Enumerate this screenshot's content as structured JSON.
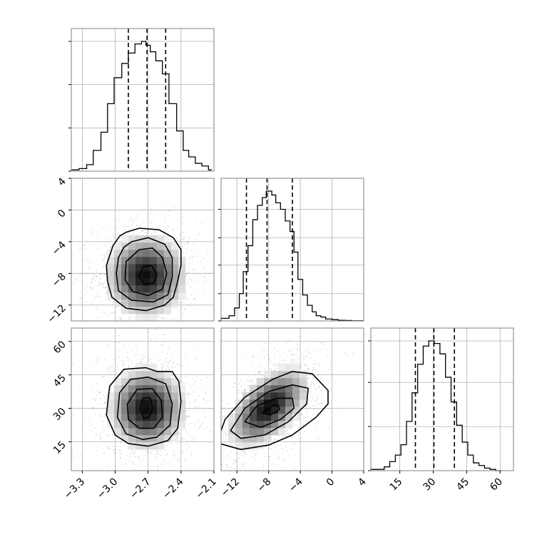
{
  "chart_data": {
    "type": "corner",
    "grid": true,
    "params": [
      {
        "range": [
          -3.4,
          -2.1
        ],
        "ticks": [
          -3.3,
          -3.0,
          -2.7,
          -2.4,
          -2.1
        ],
        "tick_labels": [
          "−3.3",
          "−3.0",
          "−2.7",
          "−2.4",
          "−2.1"
        ],
        "quantiles": [
          -2.88,
          -2.71,
          -2.54
        ],
        "hist_bins": [
          -3.4,
          -3.33,
          -3.26,
          -3.2,
          -3.13,
          -3.07,
          -3.01,
          -2.94,
          -2.88,
          -2.82,
          -2.76,
          -2.72,
          -2.68,
          -2.63,
          -2.57,
          -2.51,
          -2.44,
          -2.38,
          -2.33,
          -2.27,
          -2.21,
          -2.15,
          -2.12
        ],
        "hist_counts": [
          1,
          2,
          5,
          16,
          30,
          52,
          72,
          83,
          91,
          98,
          100,
          97,
          92,
          85,
          75,
          52,
          31,
          16,
          11,
          6,
          4,
          1
        ],
        "hist_ticks": [
          0,
          33.3,
          66.7,
          100
        ]
      },
      {
        "range": [
          -14,
          4
        ],
        "ticks": [
          -12,
          -8,
          -4,
          0,
          4
        ],
        "tick_labels": [
          "−12",
          "−8",
          "−4",
          "0",
          "4"
        ],
        "quantiles": [
          -10.8,
          -8.2,
          -5.0
        ],
        "hist_bins": [
          -14,
          -13,
          -12.3,
          -11.7,
          -11.2,
          -10.6,
          -10,
          -9.4,
          -8.8,
          -8.3,
          -7.6,
          -7.1,
          -6.5,
          -5.9,
          -5.3,
          -4.8,
          -4.3,
          -3.7,
          -3.1,
          -2.5,
          -2,
          -1.4,
          -0.8,
          0,
          0.8,
          1.7,
          2.5,
          4
        ],
        "hist_counts": [
          2,
          4,
          10,
          21,
          38,
          58,
          78,
          89,
          95,
          100,
          97,
          91,
          86,
          77,
          69,
          53,
          32,
          20,
          12,
          7,
          4,
          3,
          1.5,
          1,
          0.5,
          0.3,
          0.1
        ],
        "hist_ticks": [
          0,
          21,
          43,
          64,
          86
        ]
      },
      {
        "range": [
          2,
          66
        ],
        "ticks": [
          15,
          30,
          45,
          60
        ],
        "tick_labels": [
          "15",
          "30",
          "45",
          "60"
        ],
        "quantiles": [
          22,
          30.3,
          39.5
        ],
        "hist_bins": [
          2,
          8,
          10.5,
          13,
          15.5,
          18,
          20.5,
          23,
          25.5,
          28,
          30.5,
          33,
          35.5,
          38,
          40.5,
          43,
          45.5,
          48,
          50.5,
          53,
          55.5,
          58,
          60.5
        ],
        "hist_counts": [
          1,
          3,
          7,
          12,
          20,
          38,
          60,
          82,
          96,
          100,
          98,
          90,
          72,
          53,
          35,
          22,
          12,
          6,
          4,
          2,
          1,
          0
        ],
        "hist_ticks": [
          0,
          34,
          68,
          100
        ]
      }
    ],
    "pairs": [
      {
        "x_param": 0,
        "y_param": 1,
        "y_ticks": [
          -12,
          -8,
          -4,
          0,
          4
        ],
        "y_tick_labels": [
          "−12",
          "−8",
          "−4",
          "0",
          "4"
        ],
        "center": [
          -2.72,
          -8.3
        ],
        "sigma": [
          0.19,
          2.7
        ],
        "corr": 0.0,
        "n_points": 1500,
        "contours": [
          [
            [
              -2.9,
              -2.8
            ],
            [
              -2.78,
              -2.3
            ],
            [
              -2.6,
              -2.5
            ],
            [
              -2.47,
              -3.5
            ],
            [
              -2.4,
              -5.0
            ],
            [
              -2.4,
              -7.0
            ],
            [
              -2.43,
              -9.0
            ],
            [
              -2.47,
              -11.0
            ],
            [
              -2.55,
              -12.0
            ],
            [
              -2.72,
              -12.7
            ],
            [
              -2.9,
              -12.4
            ],
            [
              -3.03,
              -11.0
            ],
            [
              -3.07,
              -9.0
            ],
            [
              -3.08,
              -7.0
            ],
            [
              -3.02,
              -4.5
            ],
            [
              -2.96,
              -3.3
            ]
          ],
          [
            [
              -2.85,
              -4.0
            ],
            [
              -2.7,
              -3.5
            ],
            [
              -2.55,
              -4.3
            ],
            [
              -2.48,
              -6.0
            ],
            [
              -2.48,
              -8.5
            ],
            [
              -2.52,
              -10.7
            ],
            [
              -2.65,
              -11.6
            ],
            [
              -2.85,
              -11.4
            ],
            [
              -2.97,
              -10.2
            ],
            [
              -2.99,
              -8.0
            ],
            [
              -2.97,
              -6.0
            ],
            [
              -2.92,
              -4.7
            ]
          ],
          [
            [
              -2.78,
              -5.0
            ],
            [
              -2.66,
              -4.8
            ],
            [
              -2.57,
              -6.0
            ],
            [
              -2.53,
              -8.0
            ],
            [
              -2.57,
              -10.0
            ],
            [
              -2.7,
              -10.8
            ],
            [
              -2.84,
              -10.3
            ],
            [
              -2.91,
              -8.8
            ],
            [
              -2.9,
              -6.5
            ]
          ],
          [
            [
              -2.75,
              -7.2
            ],
            [
              -2.67,
              -7.0
            ],
            [
              -2.62,
              -8.1
            ],
            [
              -2.65,
              -9.2
            ],
            [
              -2.73,
              -9.4
            ],
            [
              -2.78,
              -8.5
            ]
          ]
        ]
      },
      {
        "x_param": 0,
        "y_param": 2,
        "y_ticks": [
          15,
          30,
          45,
          60
        ],
        "y_tick_labels": [
          "15",
          "30",
          "45",
          "60"
        ],
        "center": [
          -2.71,
          30
        ],
        "sigma": [
          0.18,
          9.5
        ],
        "corr": 0.0,
        "n_points": 1500,
        "contours": [
          [
            [
              -2.92,
              47.5
            ],
            [
              -2.72,
              48.2
            ],
            [
              -2.62,
              46.5
            ],
            [
              -2.48,
              46.5
            ],
            [
              -2.42,
              42.0
            ],
            [
              -2.4,
              33.0
            ],
            [
              -2.43,
              21.0
            ],
            [
              -2.52,
              15.5
            ],
            [
              -2.7,
              13.0
            ],
            [
              -2.88,
              14.2
            ],
            [
              -3.0,
              18.0
            ],
            [
              -3.08,
              27.0
            ],
            [
              -3.05,
              40.0
            ]
          ],
          [
            [
              -2.86,
              43.0
            ],
            [
              -2.7,
              44.0
            ],
            [
              -2.54,
              41.0
            ],
            [
              -2.48,
              32.0
            ],
            [
              -2.5,
              22.5
            ],
            [
              -2.62,
              17.0
            ],
            [
              -2.75,
              16.0
            ],
            [
              -2.9,
              18.5
            ],
            [
              -2.98,
              26.0
            ],
            [
              -2.96,
              37.0
            ]
          ],
          [
            [
              -2.8,
              38.5
            ],
            [
              -2.66,
              38.8
            ],
            [
              -2.58,
              33.5
            ],
            [
              -2.57,
              26.0
            ],
            [
              -2.65,
              21.0
            ],
            [
              -2.78,
              21.0
            ],
            [
              -2.88,
              25.0
            ],
            [
              -2.89,
              32.0
            ]
          ],
          [
            [
              -2.75,
              34.5
            ],
            [
              -2.68,
              34.6
            ],
            [
              -2.66,
              30.0
            ],
            [
              -2.69,
              26.0
            ],
            [
              -2.74,
              25.5
            ],
            [
              -2.77,
              30.0
            ]
          ]
        ]
      },
      {
        "x_param": 1,
        "y_param": 2,
        "y_ticks": [
          15,
          30,
          45,
          60
        ],
        "y_tick_labels": [
          "15",
          "30",
          "45",
          "60"
        ],
        "center": [
          -8.0,
          30.5
        ],
        "sigma": [
          2.6,
          9.3
        ],
        "corr": 0.55,
        "n_points": 1500,
        "contours": [
          [
            [
              -14.0,
              14.0
            ],
            [
              -14.2,
              18.0
            ],
            [
              -13.5,
              25.0
            ],
            [
              -11.0,
              35.0
            ],
            [
              -7.5,
              43.0
            ],
            [
              -5.0,
              46.5
            ],
            [
              -2.5,
              45.5
            ],
            [
              -0.5,
              38.0
            ],
            [
              -0.5,
              32.0
            ],
            [
              -2.0,
              26.0
            ],
            [
              -5.0,
              18.0
            ],
            [
              -8.0,
              13.5
            ],
            [
              -11.5,
              11.5
            ]
          ],
          [
            [
              -12.8,
              20.0
            ],
            [
              -11.0,
              30.0
            ],
            [
              -8.0,
              37.5
            ],
            [
              -5.0,
              40.5
            ],
            [
              -3.0,
              39.0
            ],
            [
              -3.2,
              32.0
            ],
            [
              -5.5,
              24.0
            ],
            [
              -8.5,
              18.0
            ],
            [
              -11.5,
              16.5
            ]
          ],
          [
            [
              -11.0,
              24.0
            ],
            [
              -9.5,
              31.0
            ],
            [
              -7.0,
              34.5
            ],
            [
              -5.0,
              34.5
            ],
            [
              -4.8,
              30.0
            ],
            [
              -6.5,
              25.0
            ],
            [
              -9.0,
              21.5
            ]
          ],
          [
            [
              -8.8,
              28.0
            ],
            [
              -7.6,
              31.0
            ],
            [
              -6.8,
              31.5
            ],
            [
              -6.6,
              29.5
            ],
            [
              -7.8,
              27.0
            ]
          ]
        ]
      }
    ]
  }
}
